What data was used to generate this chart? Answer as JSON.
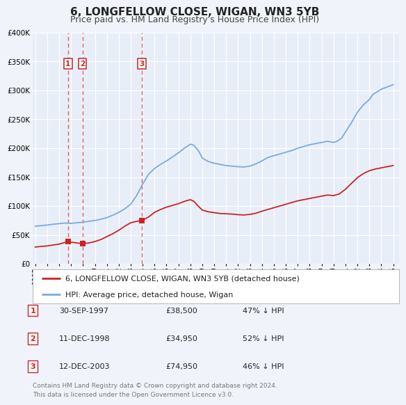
{
  "title": "6, LONGFELLOW CLOSE, WIGAN, WN3 5YB",
  "subtitle": "Price paid vs. HM Land Registry's House Price Index (HPI)",
  "title_fontsize": 11,
  "subtitle_fontsize": 9,
  "background_color": "#f0f4fa",
  "plot_bg_color": "#e8eef8",
  "grid_color": "#ffffff",
  "x_start": 1994.8,
  "x_end": 2025.5,
  "y_min": 0,
  "y_max": 400000,
  "y_ticks": [
    0,
    50000,
    100000,
    150000,
    200000,
    250000,
    300000,
    350000,
    400000
  ],
  "y_tick_labels": [
    "£0",
    "£50K",
    "£100K",
    "£150K",
    "£200K",
    "£250K",
    "£300K",
    "£350K",
    "£400K"
  ],
  "x_ticks": [
    1995,
    1996,
    1997,
    1998,
    1999,
    2000,
    2001,
    2002,
    2003,
    2004,
    2005,
    2006,
    2007,
    2008,
    2009,
    2010,
    2011,
    2012,
    2013,
    2014,
    2015,
    2016,
    2017,
    2018,
    2019,
    2020,
    2021,
    2022,
    2023,
    2024,
    2025
  ],
  "hpi_color": "#7aaadd",
  "price_color": "#cc2222",
  "sale_marker_color": "#cc2222",
  "sale_vline_color": "#e06060",
  "legend_label_price": "6, LONGFELLOW CLOSE, WIGAN, WN3 5YB (detached house)",
  "legend_label_hpi": "HPI: Average price, detached house, Wigan",
  "sales": [
    {
      "num": 1,
      "year": 1997.75,
      "price": 38500,
      "date": "30-SEP-1997",
      "price_str": "£38,500",
      "pct": "47%"
    },
    {
      "num": 2,
      "year": 1998.95,
      "price": 34950,
      "date": "11-DEC-1998",
      "price_str": "£34,950",
      "pct": "52%"
    },
    {
      "num": 3,
      "year": 2003.95,
      "price": 74950,
      "date": "12-DEC-2003",
      "price_str": "£74,950",
      "pct": "46%"
    }
  ],
  "hpi_x": [
    1995.0,
    1995.2,
    1995.5,
    1996.0,
    1996.5,
    1997.0,
    1997.5,
    1998.0,
    1998.5,
    1999.0,
    1999.5,
    2000.0,
    2000.5,
    2001.0,
    2001.5,
    2002.0,
    2002.5,
    2003.0,
    2003.5,
    2004.0,
    2004.5,
    2005.0,
    2005.5,
    2006.0,
    2006.5,
    2007.0,
    2007.5,
    2008.0,
    2008.3,
    2008.7,
    2009.0,
    2009.5,
    2010.0,
    2010.5,
    2011.0,
    2011.5,
    2012.0,
    2012.5,
    2013.0,
    2013.5,
    2014.0,
    2014.5,
    2015.0,
    2015.5,
    2016.0,
    2016.5,
    2017.0,
    2017.5,
    2018.0,
    2018.5,
    2019.0,
    2019.5,
    2020.0,
    2020.3,
    2020.7,
    2021.0,
    2021.5,
    2022.0,
    2022.5,
    2023.0,
    2023.3,
    2023.7,
    2024.0,
    2024.5,
    2025.0
  ],
  "hpi_y": [
    65000,
    65500,
    66000,
    67000,
    68500,
    69500,
    70500,
    70000,
    71000,
    72000,
    73500,
    75000,
    77000,
    80000,
    84000,
    89000,
    95000,
    103000,
    118000,
    138000,
    155000,
    165000,
    172000,
    178000,
    185000,
    192000,
    200000,
    207000,
    205000,
    195000,
    183000,
    177000,
    174000,
    172000,
    170000,
    169000,
    168000,
    167500,
    169000,
    173000,
    178000,
    184000,
    187000,
    190000,
    193000,
    196000,
    200000,
    203000,
    206000,
    208000,
    210000,
    212000,
    210000,
    212000,
    218000,
    228000,
    244000,
    262000,
    275000,
    284000,
    293000,
    298000,
    302000,
    306000,
    310000
  ],
  "price_x": [
    1995.0,
    1995.5,
    1996.0,
    1996.5,
    1997.0,
    1997.5,
    1997.75,
    1998.0,
    1998.5,
    1998.95,
    1999.5,
    2000.0,
    2000.5,
    2001.0,
    2001.5,
    2002.0,
    2002.5,
    2003.0,
    2003.5,
    2003.95,
    2004.5,
    2005.0,
    2005.5,
    2006.0,
    2006.5,
    2007.0,
    2007.5,
    2008.0,
    2008.3,
    2008.7,
    2009.0,
    2009.5,
    2010.0,
    2010.5,
    2011.0,
    2011.5,
    2012.0,
    2012.5,
    2013.0,
    2013.5,
    2014.0,
    2014.5,
    2015.0,
    2015.5,
    2016.0,
    2016.5,
    2017.0,
    2017.5,
    2018.0,
    2018.5,
    2019.0,
    2019.5,
    2020.0,
    2020.5,
    2021.0,
    2021.5,
    2022.0,
    2022.5,
    2023.0,
    2023.5,
    2024.0,
    2024.5,
    2025.0
  ],
  "price_y": [
    29000,
    30000,
    31000,
    32500,
    34000,
    37000,
    38500,
    37500,
    36000,
    34950,
    36000,
    38500,
    42000,
    47000,
    52000,
    58000,
    65000,
    71000,
    73500,
    74950,
    81000,
    89000,
    94000,
    98000,
    101000,
    104000,
    108000,
    111000,
    108000,
    99000,
    93000,
    90000,
    88500,
    87000,
    86500,
    86000,
    85000,
    84500,
    85500,
    87500,
    91000,
    94000,
    97000,
    100000,
    103000,
    106000,
    109000,
    111000,
    113000,
    115000,
    117000,
    119000,
    118000,
    121000,
    129000,
    139000,
    149000,
    156000,
    161000,
    164000,
    166000,
    168000,
    170000
  ],
  "footnote1": "Contains HM Land Registry data © Crown copyright and database right 2024.",
  "footnote2": "This data is licensed under the Open Government Licence v3.0."
}
